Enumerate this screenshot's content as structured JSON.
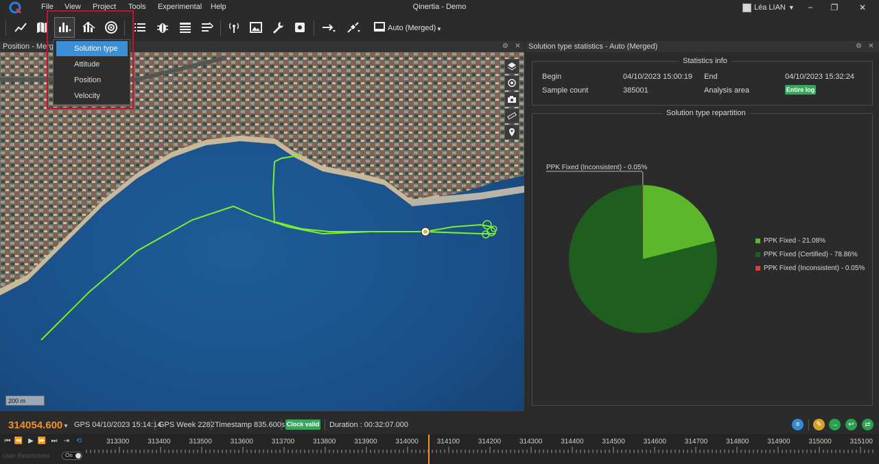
{
  "app": {
    "window_title": "Qinertia - Demo",
    "menu": [
      "File",
      "View",
      "Project",
      "Tools",
      "Experimental",
      "Help"
    ],
    "user": "Léa LIAN"
  },
  "toolbar": {
    "source_label": "Auto (Merged)"
  },
  "dropdown": {
    "items": [
      "Solution type",
      "Attitude",
      "Position",
      "Velocity"
    ],
    "selected": "Solution type"
  },
  "left_panel": {
    "title": "Position - Merged",
    "scale": "200 m"
  },
  "right_panel": {
    "title": "Solution type statistics - Auto (Merged)",
    "stats_info": {
      "title": "Statistics info",
      "begin_label": "Begin",
      "begin_value": "04/10/2023 15:00:19",
      "end_label": "End",
      "end_value": "04/10/2023 15:32:24",
      "sample_count_label": "Sample count",
      "sample_count_value": "385001",
      "analysis_area_label": "Analysis area",
      "analysis_area_value": "Entire log"
    },
    "repartition_title": "Solution type repartition"
  },
  "chart_data": {
    "type": "pie",
    "title": "Solution type repartition",
    "slices": [
      {
        "name": "PPK Fixed",
        "value": 21.08,
        "label": "PPK Fixed - 21.08%",
        "color": "#5cb82a"
      },
      {
        "name": "PPK Fixed (Certified)",
        "value": 78.86,
        "label": "PPK Fixed (Certified) - 78.86%",
        "color": "#1e5e1e"
      },
      {
        "name": "PPK Fixed (Inconsistent)",
        "value": 0.05,
        "label": "PPK Fixed (Inconsistent) - 0.05%",
        "color": "#e03c3c"
      }
    ],
    "annotation": "PPK Fixed (Inconsistent) - 0.05%",
    "legend_position": "right"
  },
  "status": {
    "time_value": "314054.600",
    "gps_time": "GPS 04/10/2023 15:14:14",
    "gps_week": "GPS Week 2282",
    "timestamp": "Timestamp 835.600s",
    "clock_badge": "Clock valid",
    "duration": "Duration : 00:32:07.000"
  },
  "timeline": {
    "ticks": [
      "313300",
      "313400",
      "313500",
      "313600",
      "313700",
      "313800",
      "313900",
      "314000",
      "314100",
      "314200",
      "314300",
      "314400",
      "314500",
      "314600",
      "314700",
      "314800",
      "314900",
      "315000",
      "315100"
    ],
    "user_restrictions": "User Restrictions",
    "toggle": "On"
  },
  "colors": {
    "accent_orange": "#f0922b",
    "badge_green": "#3aa55d",
    "selection_blue": "#3b8fd6",
    "highlight_red": "#c8102e",
    "trajectory_green": "#7cf02a"
  }
}
